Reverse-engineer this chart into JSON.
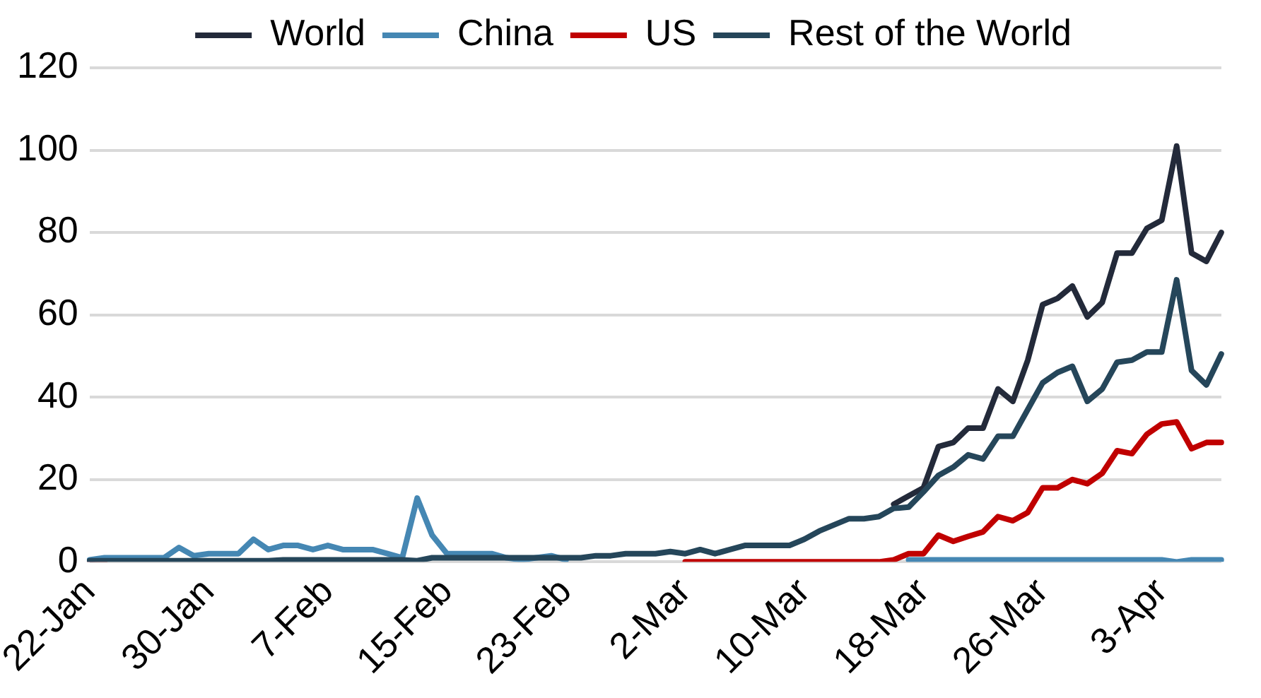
{
  "chart_data": {
    "type": "line",
    "categories": [
      "22-Jan",
      null,
      null,
      null,
      null,
      null,
      null,
      null,
      "30-Jan",
      null,
      null,
      null,
      null,
      null,
      null,
      null,
      "7-Feb",
      null,
      null,
      null,
      null,
      null,
      null,
      null,
      "15-Feb",
      null,
      null,
      null,
      null,
      null,
      null,
      null,
      "23-Feb",
      null,
      null,
      null,
      null,
      null,
      null,
      null,
      "2-Mar",
      null,
      null,
      null,
      null,
      null,
      null,
      null,
      "10-Mar",
      null,
      null,
      null,
      null,
      null,
      null,
      null,
      "18-Mar",
      null,
      null,
      null,
      null,
      null,
      null,
      null,
      "26-Mar",
      null,
      null,
      null,
      null,
      null,
      null,
      null,
      "3-Apr",
      null,
      null,
      null,
      null
    ],
    "series": [
      {
        "name": "World",
        "color": "#232a3a",
        "values": [
          null,
          null,
          null,
          null,
          null,
          null,
          null,
          null,
          null,
          null,
          null,
          null,
          null,
          null,
          null,
          null,
          null,
          null,
          null,
          null,
          null,
          null,
          null,
          null,
          null,
          null,
          null,
          null,
          null,
          null,
          null,
          null,
          null,
          null,
          null,
          null,
          null,
          null,
          null,
          null,
          null,
          null,
          null,
          null,
          null,
          null,
          null,
          null,
          null,
          null,
          null,
          null,
          null,
          null,
          14,
          16,
          18,
          28,
          29,
          32.5,
          32.5,
          42,
          39,
          49,
          62.5,
          64,
          67,
          59.5,
          63,
          75,
          75,
          81,
          83,
          101,
          75,
          73,
          80
        ]
      },
      {
        "name": "China",
        "color": "#4587b3",
        "values": [
          0.5,
          1,
          1,
          1,
          1,
          1,
          3.5,
          1.5,
          2,
          2,
          2,
          5.5,
          3,
          4,
          4,
          3,
          4,
          3,
          3,
          3,
          2,
          1,
          15.5,
          6.5,
          2,
          2,
          2,
          2,
          1,
          0.5,
          1,
          1.5,
          0.5,
          null,
          null,
          null,
          null,
          null,
          null,
          null,
          null,
          null,
          null,
          null,
          null,
          null,
          null,
          null,
          null,
          null,
          null,
          null,
          null,
          null,
          null,
          0.5,
          0.5,
          0.5,
          0.5,
          0.5,
          0.5,
          0.5,
          0.5,
          0.5,
          0.5,
          0.5,
          0.5,
          0.5,
          0.5,
          0.5,
          0.5,
          0.5,
          0.5,
          0,
          0.5,
          0.5,
          0.5
        ]
      },
      {
        "name": "US",
        "color": "#c00000",
        "values": [
          0,
          0,
          null,
          null,
          null,
          null,
          null,
          null,
          null,
          null,
          null,
          null,
          null,
          null,
          null,
          null,
          null,
          null,
          null,
          null,
          null,
          null,
          null,
          null,
          null,
          null,
          null,
          null,
          null,
          null,
          null,
          null,
          null,
          null,
          null,
          null,
          null,
          null,
          null,
          null,
          0,
          0,
          0,
          0,
          0,
          0,
          0,
          0,
          0,
          0,
          0,
          0,
          0,
          0,
          0.5,
          2,
          2,
          6.5,
          5,
          6.2,
          7.3,
          11,
          10,
          12,
          18,
          18,
          20,
          19,
          21.5,
          27,
          26.3,
          31,
          33.5,
          34,
          27.5,
          29,
          29
        ]
      },
      {
        "name": "Rest of the World",
        "color": "#25465a",
        "values": [
          0.3,
          0.3,
          0.3,
          0.3,
          0.3,
          0.3,
          0.3,
          0.3,
          0.3,
          0.3,
          0.3,
          0.3,
          0.3,
          0.5,
          0.5,
          0.5,
          0.5,
          0.5,
          0.5,
          0.5,
          0.5,
          0.5,
          0.3,
          1,
          1,
          1,
          1,
          1,
          1,
          1,
          1,
          1,
          1,
          1,
          1.5,
          1.5,
          2,
          2,
          2,
          2.5,
          2,
          3,
          2,
          3,
          4,
          4,
          4,
          4,
          5.5,
          7.5,
          9,
          10.5,
          10.5,
          11,
          13,
          13.3,
          17,
          21,
          23,
          26,
          25,
          30.5,
          30.5,
          37,
          43.5,
          46,
          47.5,
          39,
          42,
          48.5,
          49,
          51,
          51,
          68.5,
          46.5,
          43,
          50.5
        ]
      }
    ],
    "ylim": [
      0,
      120
    ],
    "yticks": [
      0,
      20,
      40,
      60,
      80,
      100,
      120
    ],
    "grid": "y",
    "legend": "top"
  }
}
